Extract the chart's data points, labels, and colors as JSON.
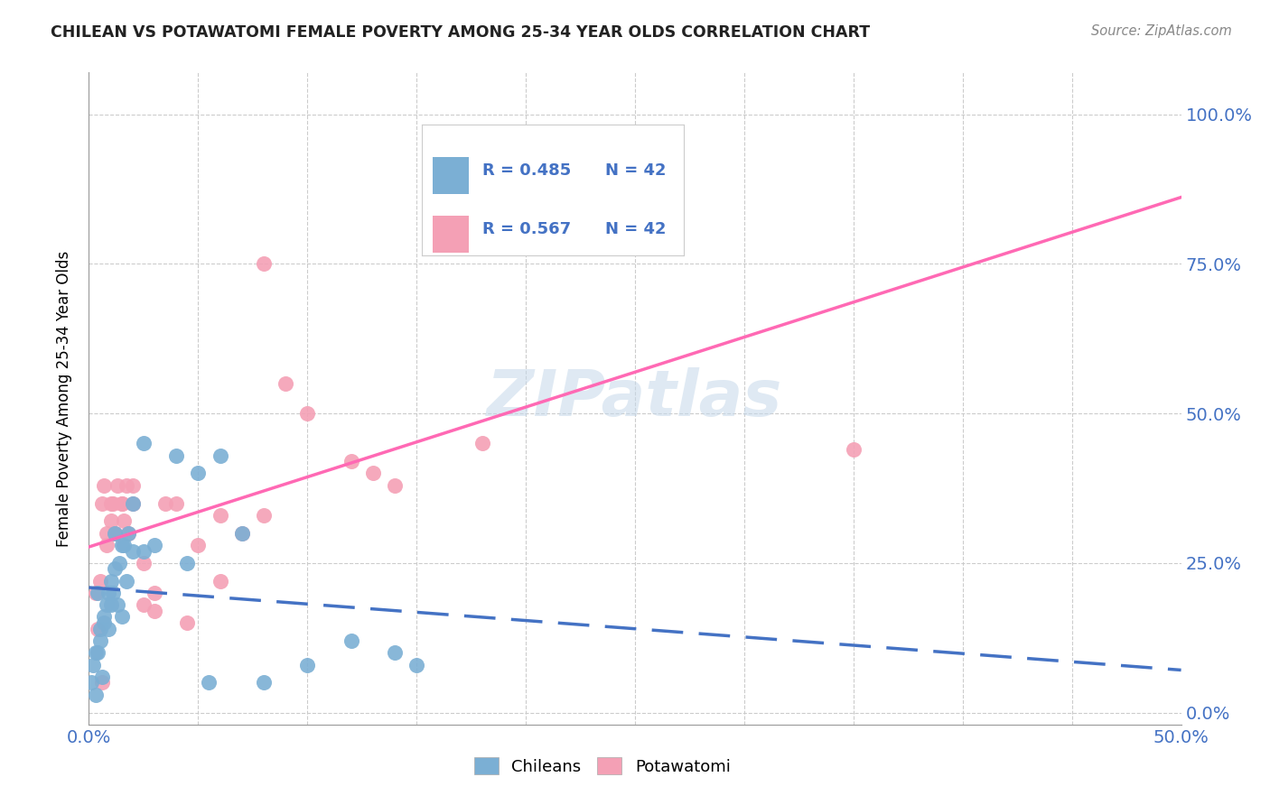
{
  "title": "CHILEAN VS POTAWATOMI FEMALE POVERTY AMONG 25-34 YEAR OLDS CORRELATION CHART",
  "source": "Source: ZipAtlas.com",
  "ylabel": "Female Poverty Among 25-34 Year Olds",
  "ytick_labels": [
    "0.0%",
    "25.0%",
    "50.0%",
    "75.0%",
    "100.0%"
  ],
  "ytick_values": [
    0,
    25,
    50,
    75,
    100
  ],
  "xlim": [
    0,
    50
  ],
  "ylim": [
    -2,
    107
  ],
  "legend_r1": "R = 0.485",
  "legend_n1": "N = 42",
  "legend_r2": "R = 0.567",
  "legend_n2": "N = 42",
  "chilean_color": "#7bafd4",
  "potawatomi_color": "#f4a0b5",
  "chilean_line_color": "#4472C4",
  "potawatomi_line_color": "#FF69B4",
  "label_color": "#4472C4",
  "watermark": "ZIPatlas",
  "chilean_x": [
    0.1,
    0.2,
    0.3,
    0.4,
    0.5,
    0.6,
    0.7,
    0.8,
    0.9,
    1.0,
    1.1,
    1.2,
    1.3,
    1.4,
    1.5,
    1.6,
    1.7,
    1.8,
    2.0,
    2.5,
    3.0,
    4.0,
    5.0,
    6.0,
    7.0,
    8.0,
    10.0,
    12.0,
    14.0,
    15.0,
    0.3,
    0.5,
    0.7,
    1.0,
    1.2,
    1.5,
    2.0,
    2.5,
    4.5,
    5.5,
    0.4,
    0.9
  ],
  "chilean_y": [
    5,
    8,
    3,
    10,
    12,
    6,
    15,
    18,
    14,
    22,
    20,
    24,
    18,
    25,
    16,
    28,
    22,
    30,
    27,
    27,
    28,
    43,
    40,
    43,
    30,
    5,
    8,
    12,
    10,
    8,
    10,
    14,
    16,
    18,
    30,
    28,
    35,
    45,
    25,
    5,
    20,
    20
  ],
  "potawatomi_x": [
    0.3,
    0.5,
    0.6,
    0.7,
    0.8,
    1.0,
    1.1,
    1.2,
    1.3,
    1.5,
    1.6,
    1.7,
    1.8,
    2.0,
    2.5,
    3.0,
    3.5,
    4.0,
    5.0,
    6.0,
    7.0,
    8.0,
    9.0,
    10.0,
    12.0,
    13.0,
    14.0,
    18.0,
    25.0,
    35.0,
    0.4,
    0.6,
    0.8,
    1.0,
    1.2,
    1.5,
    2.0,
    2.5,
    3.0,
    4.5,
    6.0,
    8.0
  ],
  "potawatomi_y": [
    20,
    22,
    35,
    38,
    30,
    32,
    35,
    30,
    38,
    35,
    32,
    38,
    30,
    38,
    18,
    17,
    35,
    35,
    28,
    22,
    30,
    75,
    55,
    50,
    42,
    40,
    38,
    45,
    88,
    44,
    14,
    5,
    28,
    35,
    30,
    35,
    35,
    25,
    20,
    15,
    33,
    33
  ]
}
